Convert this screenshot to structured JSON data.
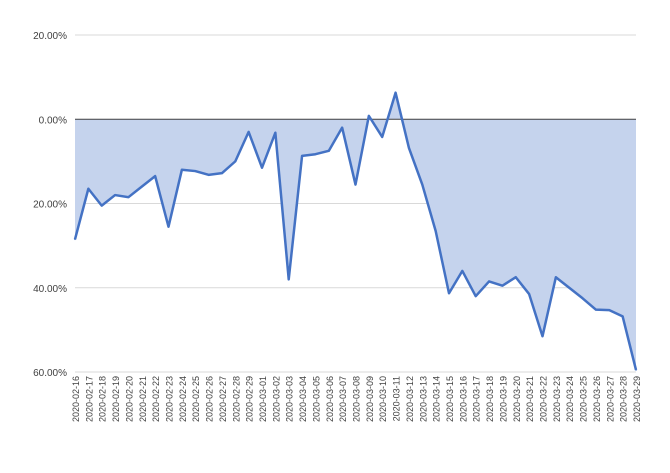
{
  "chart_data": {
    "type": "area",
    "title": "",
    "xlabel": "",
    "ylabel": "",
    "ylim": [
      -60,
      20
    ],
    "yticks": [
      {
        "value": 20,
        "label": "20.00%"
      },
      {
        "value": 0,
        "label": "0.00%"
      },
      {
        "value": -20,
        "label": "20.00%"
      },
      {
        "value": -40,
        "label": "40.00%"
      },
      {
        "value": -60,
        "label": "60.00%"
      }
    ],
    "grid": true,
    "legend": "none",
    "colors": {
      "line": "#4472C4",
      "fill": "#C5D3ED",
      "grid": "#D9D9D9",
      "zero": "#404040"
    },
    "categories": [
      "2020-02-16",
      "2020-02-17",
      "2020-02-18",
      "2020-02-19",
      "2020-02-20",
      "2020-02-21",
      "2020-02-22",
      "2020-02-23",
      "2020-02-24",
      "2020-02-25",
      "2020-02-26",
      "2020-02-27",
      "2020-02-28",
      "2020-02-29",
      "2020-03-01",
      "2020-03-02",
      "2020-03-03",
      "2020-03-04",
      "2020-03-05",
      "2020-03-06",
      "2020-03-07",
      "2020-03-08",
      "2020-03-09",
      "2020-03-10",
      "2020-03-11",
      "2020-03-12",
      "2020-03-13",
      "2020-03-14",
      "2020-03-15",
      "2020-03-16",
      "2020-03-17",
      "2020-03-18",
      "2020-03-19",
      "2020-03-20",
      "2020-03-21",
      "2020-03-22",
      "2020-03-23",
      "2020-03-24",
      "2020-03-25",
      "2020-03-26",
      "2020-03-27",
      "2020-03-28",
      "2020-03-29"
    ],
    "series": [
      {
        "values": [
          -28.5,
          -16.5,
          -20.5,
          -18,
          -18.5,
          -16,
          -13.5,
          -25.5,
          -12,
          -12.3,
          -13.2,
          -12.8,
          -10,
          -3,
          -11.5,
          -3.2,
          -38,
          -8.7,
          -8.3,
          -7.5,
          -2,
          -15.5,
          0.8,
          -4.2,
          6.3,
          -6.8,
          -15.5,
          -26.5,
          -41.3,
          -36,
          -42,
          -38.5,
          -39.5,
          -37.5,
          -41.5,
          -51.5,
          -37.5,
          -40,
          -42.5,
          -45.2,
          -45.3,
          -46.8,
          -59.5
        ]
      }
    ]
  }
}
